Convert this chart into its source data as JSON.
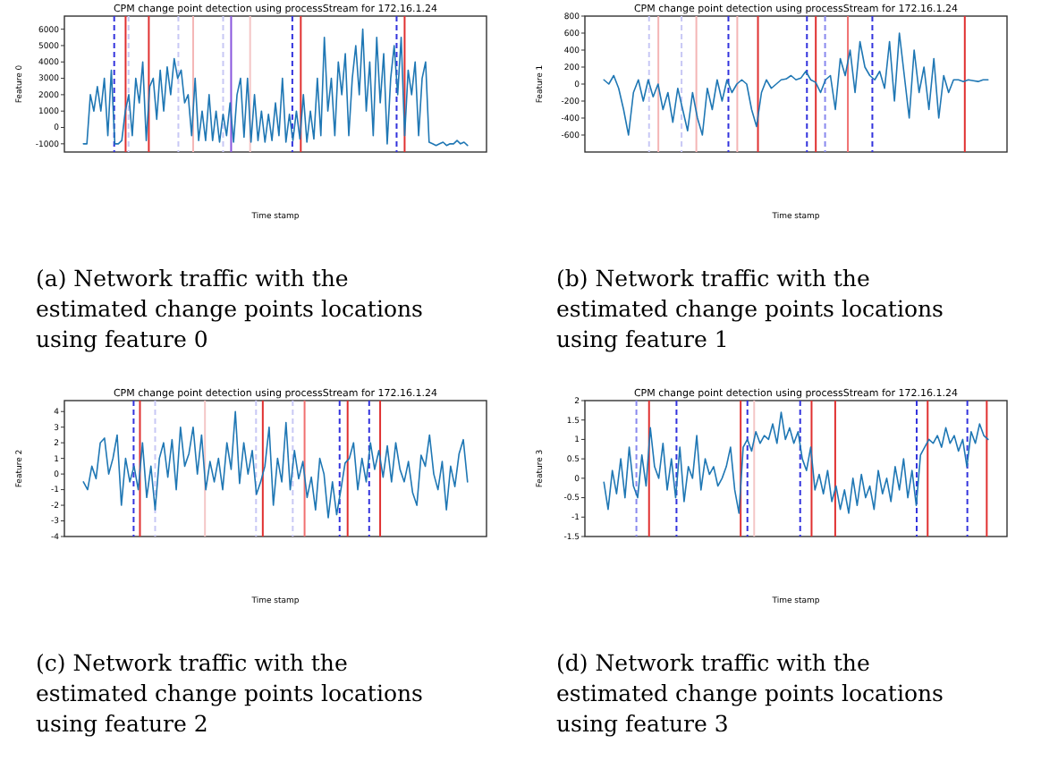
{
  "chart_data": [
    {
      "type": "line",
      "title": "CPM change point detection using processStream for 172.16.1.24",
      "xlabel": "Time stamp",
      "ylabel": "Feature 0",
      "ylim": [
        -1500,
        6800
      ],
      "yticks": [
        -1000,
        0,
        1000,
        2000,
        3000,
        4000,
        5000,
        6000
      ],
      "categories": [
        null,
        null,
        null,
        null,
        null,
        null,
        null,
        null,
        null,
        null,
        null,
        null,
        null,
        null,
        null,
        null,
        null,
        null,
        null,
        null,
        null,
        null,
        null,
        null,
        null,
        null,
        null,
        null,
        null,
        null,
        null,
        null,
        null,
        null,
        null,
        null,
        null,
        null,
        null,
        null,
        null,
        null,
        null,
        null,
        null,
        null,
        null,
        null,
        null,
        null,
        null,
        null,
        null,
        null,
        null,
        null,
        null,
        null,
        null,
        null,
        null,
        null,
        null,
        null,
        null,
        null,
        null,
        null,
        null,
        null,
        null,
        null,
        null,
        null,
        null,
        null,
        null,
        null,
        null,
        null,
        null,
        null,
        null,
        null,
        null,
        null,
        null,
        null,
        null,
        null,
        null,
        null,
        null,
        null,
        null,
        null,
        null,
        null,
        null,
        null,
        null,
        null,
        null,
        null,
        null,
        null,
        null,
        null,
        null,
        null,
        null
      ],
      "series": [
        {
          "color": "#1f77b4",
          "values": [
            -1000,
            -1000,
            2000,
            1000,
            2500,
            1000,
            3000,
            -500,
            3500,
            -1000,
            -1000,
            -800,
            1000,
            2000,
            -500,
            3000,
            1500,
            4000,
            -800,
            2500,
            3000,
            500,
            3500,
            1000,
            3700,
            2000,
            4200,
            3000,
            3500,
            1500,
            2000,
            -500,
            3000,
            -800,
            1000,
            -800,
            2000,
            -800,
            1000,
            -900,
            800,
            -500,
            1500,
            -900,
            2000,
            3000,
            -600,
            3000,
            -900,
            2000,
            -800,
            1000,
            -900,
            800,
            -800,
            1500,
            -500,
            3000,
            -900,
            800,
            -800,
            1000,
            -700,
            2000,
            -900,
            1000,
            -700,
            3000,
            -500,
            5500,
            1000,
            3000,
            -500,
            4000,
            2000,
            4500,
            -500,
            3000,
            5000,
            2000,
            6000,
            1000,
            4000,
            -500,
            5500,
            1500,
            4500,
            -1000,
            3000,
            5000,
            2000,
            5500,
            -500,
            3500,
            2000,
            4000,
            -500,
            3000,
            4000,
            -900,
            -1000,
            -1100,
            -1000,
            -900,
            -1100,
            -1000,
            -1000,
            -800,
            -1000,
            -900,
            -1100
          ]
        }
      ],
      "annotations": [
        "(a) Network traffic with the estimated change points locations using feature 0"
      ]
    },
    {
      "type": "line",
      "title": "CPM change point detection using processStream for 172.16.1.24",
      "xlabel": "Time stamp",
      "ylabel": "Feature 1",
      "ylim": [
        -800,
        800
      ],
      "yticks": [
        -600,
        -400,
        -200,
        0,
        200,
        400,
        600,
        800
      ],
      "categories": [
        null,
        null,
        null,
        null,
        null,
        null,
        null,
        null,
        null,
        null,
        null,
        null,
        null,
        null,
        null,
        null,
        null,
        null,
        null,
        null,
        null,
        null,
        null,
        null,
        null,
        null,
        null,
        null,
        null,
        null,
        null,
        null,
        null,
        null,
        null,
        null,
        null,
        null,
        null,
        null,
        null,
        null,
        null,
        null,
        null,
        null,
        null,
        null,
        null,
        null,
        null,
        null,
        null,
        null,
        null,
        null,
        null,
        null,
        null,
        null,
        null,
        null,
        null,
        null,
        null,
        null,
        null,
        null,
        null,
        null,
        null,
        null,
        null,
        null,
        null,
        null,
        null,
        null,
        null
      ],
      "series": [
        {
          "color": "#1f77b4",
          "values": [
            50,
            0,
            100,
            -50,
            -300,
            -600,
            -100,
            50,
            -200,
            50,
            -150,
            0,
            -300,
            -100,
            -450,
            -50,
            -300,
            -550,
            -100,
            -400,
            -600,
            -50,
            -300,
            50,
            -200,
            50,
            -100,
            0,
            50,
            0,
            -300,
            -500,
            -100,
            50,
            -50,
            0,
            50,
            60,
            100,
            50,
            70,
            150,
            50,
            20,
            -100,
            50,
            100,
            -300,
            300,
            100,
            400,
            -100,
            500,
            200,
            100,
            50,
            150,
            -50,
            500,
            -200,
            600,
            100,
            -400,
            400,
            -100,
            200,
            -300,
            300,
            -400,
            100,
            -100,
            50,
            50,
            30,
            50,
            40,
            30,
            50,
            50
          ]
        }
      ],
      "annotations": [
        "(b) Network traffic with the estimated change points locations using feature 1"
      ]
    },
    {
      "type": "line",
      "title": "CPM change point detection using processStream for 172.16.1.24",
      "xlabel": "Time stamp",
      "ylabel": "Feature 2",
      "ylim": [
        -4,
        4.7
      ],
      "yticks": [
        -4,
        -3,
        -2,
        -1,
        0,
        1,
        2,
        3,
        4
      ],
      "categories": [
        null,
        null,
        null,
        null,
        null,
        null,
        null,
        null,
        null,
        null,
        null,
        null,
        null,
        null,
        null,
        null,
        null,
        null,
        null,
        null,
        null,
        null,
        null,
        null,
        null,
        null,
        null,
        null,
        null,
        null,
        null,
        null,
        null,
        null,
        null,
        null,
        null,
        null,
        null,
        null,
        null,
        null,
        null,
        null,
        null,
        null,
        null,
        null,
        null,
        null,
        null,
        null,
        null,
        null,
        null,
        null,
        null,
        null,
        null,
        null,
        null,
        null,
        null,
        null,
        null,
        null,
        null,
        null,
        null,
        null,
        null,
        null,
        null,
        null,
        null,
        null,
        null,
        null,
        null,
        null,
        null,
        null,
        null,
        null,
        null,
        null,
        null,
        null,
        null,
        null,
        null,
        null
      ],
      "series": [
        {
          "color": "#1f77b4",
          "values": [
            -0.5,
            -1,
            0.5,
            -0.3,
            2,
            2.3,
            0,
            1,
            2.5,
            -2,
            1,
            -0.5,
            0.5,
            -1,
            2,
            -1.5,
            0.5,
            -2.3,
            1,
            2,
            -0.2,
            2.2,
            -1,
            3,
            0.5,
            1.3,
            3,
            0,
            2.5,
            -1,
            0.8,
            -0.5,
            1,
            -1,
            2,
            0.3,
            4,
            -0.6,
            2,
            0,
            1.5,
            -1.3,
            -0.5,
            0.5,
            3,
            -2,
            1,
            -0.5,
            3.3,
            -1,
            1.5,
            -0.3,
            0.8,
            -1.5,
            -0.2,
            -2.3,
            1,
            0,
            -2.8,
            -0.5,
            -2.6,
            -1,
            0.7,
            1,
            2,
            -1,
            1,
            -0.5,
            2,
            0.3,
            1.5,
            -0.2,
            1.8,
            -0.5,
            2,
            0.3,
            -0.5,
            0.8,
            -1.2,
            -2,
            1.2,
            0.5,
            2.5,
            0,
            -1,
            0.8,
            -2.3,
            0.5,
            -0.8,
            1.3,
            2.2,
            -0.5
          ]
        }
      ],
      "annotations": [
        "(c) Network traffic with the estimated change points locations using feature 2"
      ]
    },
    {
      "type": "line",
      "title": "CPM change point detection using processStream for 172.16.1.24",
      "xlabel": "Time stamp",
      "ylabel": "Feature 3",
      "ylim": [
        -1.5,
        2
      ],
      "yticks": [
        -1.5,
        -1,
        -0.5,
        0,
        0.5,
        1,
        1.5,
        2
      ],
      "categories": [
        null,
        null,
        null,
        null,
        null,
        null,
        null,
        null,
        null,
        null,
        null,
        null,
        null,
        null,
        null,
        null,
        null,
        null,
        null,
        null,
        null,
        null,
        null,
        null,
        null,
        null,
        null,
        null,
        null,
        null,
        null,
        null,
        null,
        null,
        null,
        null,
        null,
        null,
        null,
        null,
        null,
        null,
        null,
        null,
        null,
        null,
        null,
        null,
        null,
        null,
        null,
        null,
        null,
        null,
        null,
        null,
        null,
        null,
        null,
        null,
        null,
        null,
        null,
        null,
        null,
        null,
        null,
        null,
        null,
        null,
        null,
        null,
        null,
        null,
        null,
        null,
        null,
        null,
        null,
        null,
        null,
        null,
        null,
        null,
        null,
        null,
        null,
        null,
        null,
        null,
        null,
        null
      ],
      "series": [
        {
          "color": "#1f77b4",
          "values": [
            -0.1,
            -0.8,
            0.2,
            -0.4,
            0.5,
            -0.5,
            0.8,
            -0.2,
            -0.5,
            0.6,
            -0.2,
            1.3,
            0.3,
            0,
            0.9,
            -0.3,
            0.5,
            -0.5,
            0.8,
            -0.6,
            0.3,
            0,
            1.1,
            -0.3,
            0.5,
            0.1,
            0.3,
            -0.2,
            0,
            0.3,
            0.8,
            -0.3,
            -0.9,
            0.8,
            1,
            0.7,
            1.2,
            0.9,
            1.1,
            1,
            1.4,
            0.9,
            1.7,
            1,
            1.3,
            0.9,
            1.2,
            0.5,
            0.2,
            0.8,
            -0.3,
            0.1,
            -0.4,
            0.2,
            -0.6,
            -0.2,
            -0.8,
            -0.3,
            -0.9,
            0,
            -0.7,
            0.1,
            -0.5,
            -0.2,
            -0.8,
            0.2,
            -0.4,
            0,
            -0.6,
            0.3,
            -0.3,
            0.5,
            -0.5,
            0.2,
            -0.7,
            0.6,
            0.8,
            1,
            0.9,
            1.1,
            0.8,
            1.3,
            0.9,
            1.1,
            0.7,
            1,
            0.3,
            1.2,
            0.9,
            1.4,
            1.1,
            1
          ]
        }
      ],
      "annotations": [
        "(d) Network traffic with the estimated change points locations using feature 3"
      ]
    }
  ]
}
